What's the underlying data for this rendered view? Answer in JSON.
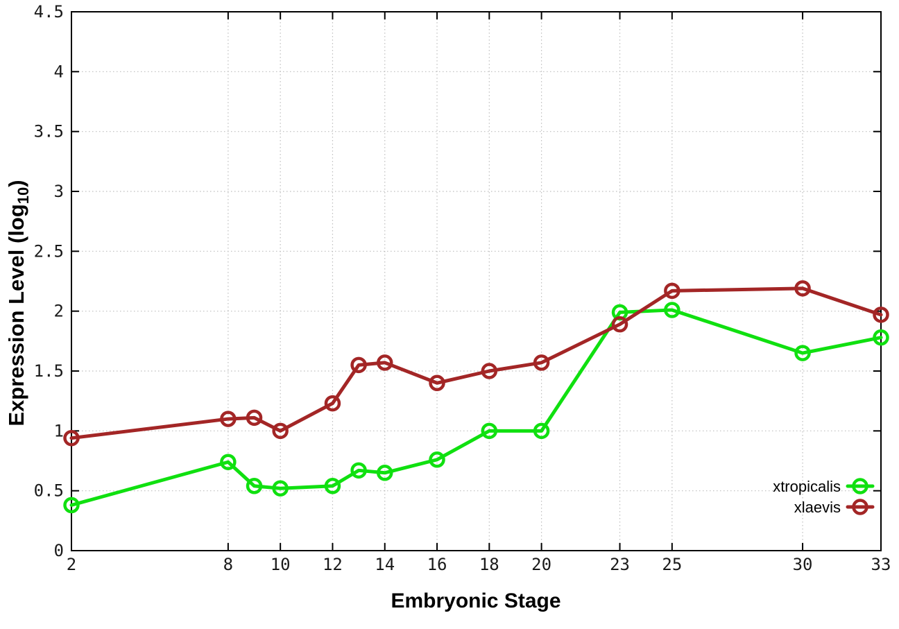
{
  "chart_data": {
    "type": "line",
    "title": "",
    "xlabel": "Embryonic Stage",
    "ylabel": "Expression Level (log10)",
    "ylabel_parts": {
      "main": "Expression Level (log",
      "sub": "10",
      "close": ")"
    },
    "xlim": [
      2,
      33
    ],
    "ylim": [
      0,
      4.5
    ],
    "grid": true,
    "grid_style": "dotted",
    "legend_position": "inside-bottom-right",
    "x_ticks": [
      2,
      8,
      10,
      12,
      14,
      16,
      18,
      20,
      23,
      25,
      30,
      33
    ],
    "x_tick_labels": [
      "2",
      "8",
      "10",
      "12",
      "14",
      "16",
      "18",
      "20",
      "23",
      "25",
      "30",
      "33"
    ],
    "y_ticks": [
      0,
      0.5,
      1,
      1.5,
      2,
      2.5,
      3,
      3.5,
      4,
      4.5
    ],
    "y_tick_labels": [
      "0",
      "0.5",
      "1",
      "1.5",
      "2",
      "2.5",
      "3",
      "3.5",
      "4",
      "4.5"
    ],
    "x": [
      2,
      8,
      9,
      10,
      12,
      13,
      14,
      16,
      18,
      20,
      23,
      25,
      30,
      33
    ],
    "series": [
      {
        "name": "xtropicalis",
        "color": "#10e010",
        "marker": "open-circle",
        "values": [
          0.38,
          0.74,
          0.54,
          0.52,
          0.54,
          0.67,
          0.65,
          0.76,
          1.0,
          1.0,
          1.99,
          2.01,
          1.65,
          1.78
        ]
      },
      {
        "name": "xlaevis",
        "color": "#a32626",
        "marker": "open-circle",
        "values": [
          0.94,
          1.1,
          1.11,
          1.0,
          1.23,
          1.55,
          1.57,
          1.4,
          1.5,
          1.57,
          1.89,
          2.17,
          2.19,
          1.97
        ]
      }
    ],
    "colors": {
      "axis": "#000000",
      "tick_text": "#1a1a1a",
      "grid": "#bdbdbd",
      "background": "#ffffff"
    }
  }
}
